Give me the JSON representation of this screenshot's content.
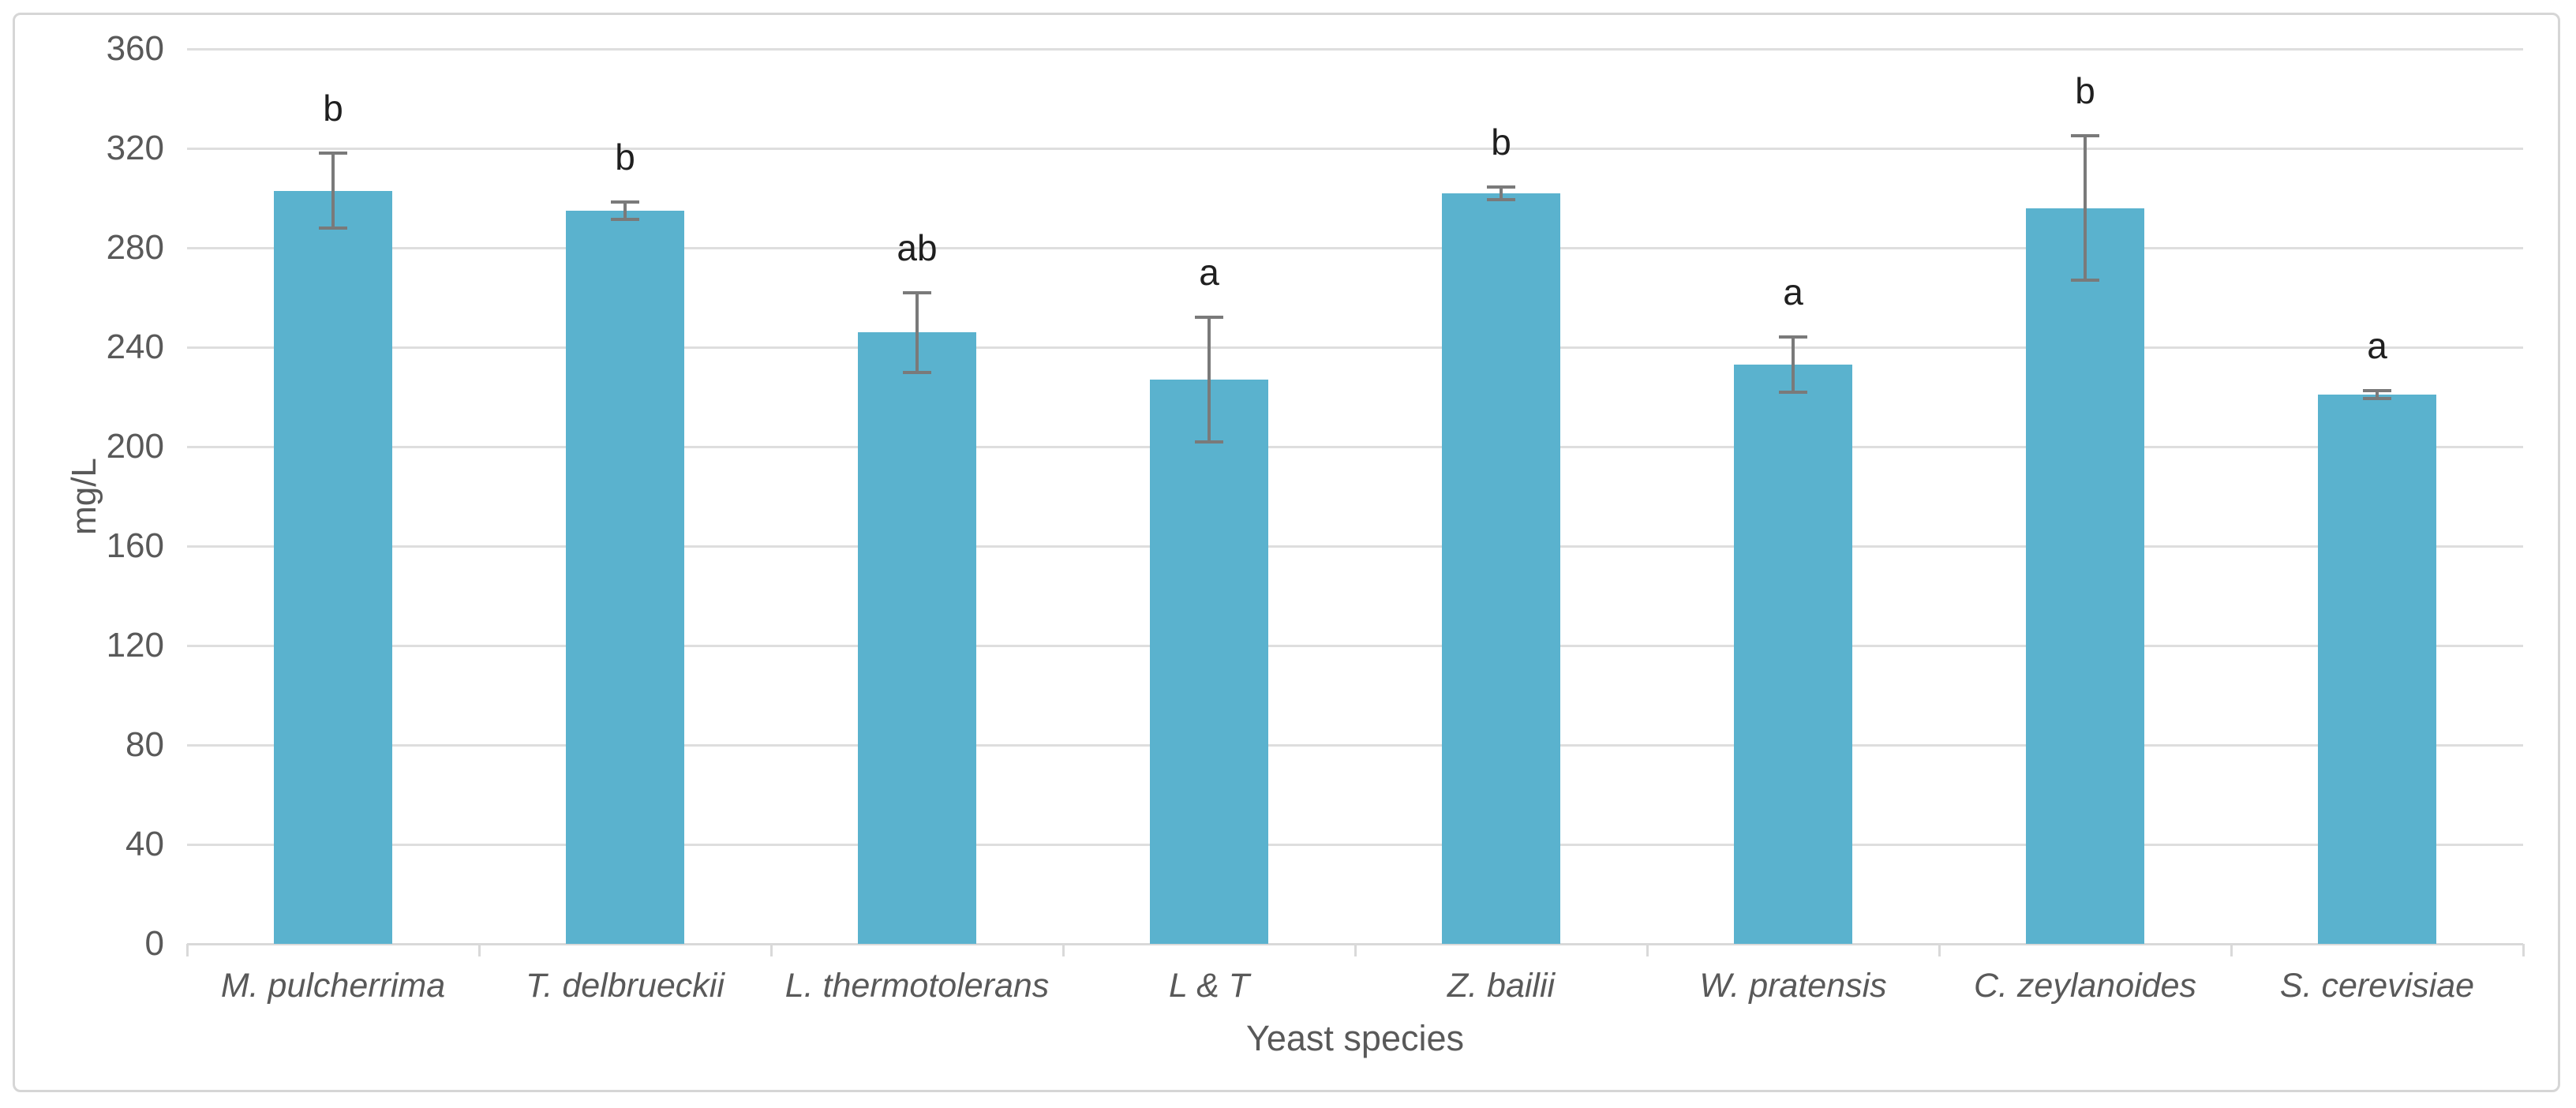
{
  "chart_data": {
    "type": "bar",
    "title": "",
    "xlabel": "Yeast species",
    "ylabel": "mg/L",
    "ylim": [
      0,
      360
    ],
    "yticks": [
      0,
      40,
      80,
      120,
      160,
      200,
      240,
      280,
      320,
      360
    ],
    "grid": true,
    "legend": false,
    "categories": [
      "M. pulcherrima",
      "T. delbrueckii",
      "L. thermotolerans",
      "L & T",
      "Z. bailii",
      "W. pratensis",
      "C. zeylanoides",
      "S. cerevisiae"
    ],
    "values": [
      303,
      295,
      246,
      227,
      302,
      233,
      296,
      221
    ],
    "error_bars": [
      15,
      3.5,
      16,
      25,
      2.5,
      11,
      29,
      1.5
    ],
    "significance_letters": [
      "b",
      "b",
      "ab",
      "a",
      "b",
      "a",
      "b",
      "a"
    ],
    "colors": {
      "bar_fill": "#5AB2CE",
      "error_bar": "#7a7a7a",
      "gridline": "#dedede",
      "axis_line": "#d9d9d9",
      "axis_text": "#595959",
      "letter_text": "#1f1f1f",
      "border": "#d6d6d6"
    }
  }
}
